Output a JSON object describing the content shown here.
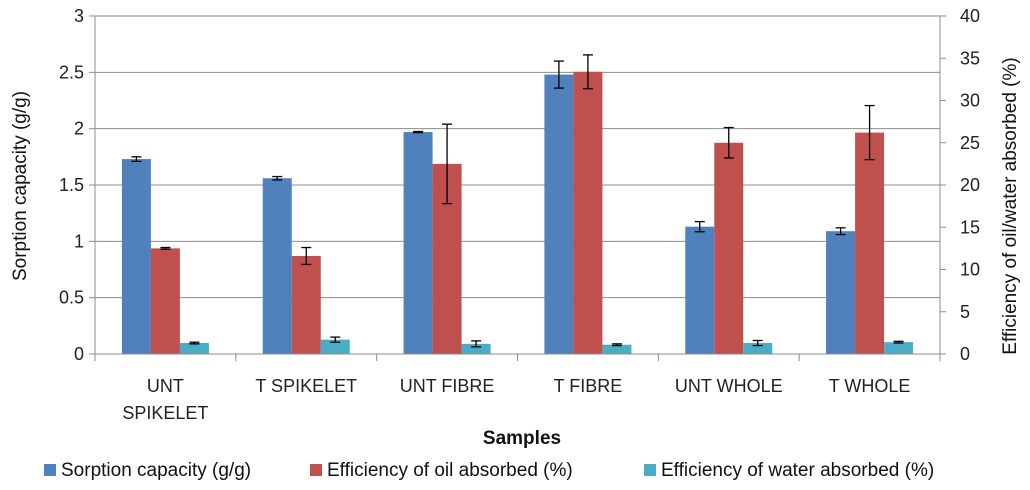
{
  "chart_data": {
    "type": "bar",
    "xlabel": "Samples",
    "ylabel": "Sorption capacity (g/g)",
    "y2label": "Efficiency of oil/water absorbed (%)",
    "ylim": [
      0,
      3
    ],
    "y2lim": [
      0,
      40
    ],
    "yticks": [
      "0",
      "0.5",
      "1",
      "1.5",
      "2",
      "2.5",
      "3"
    ],
    "y2ticks": [
      "0",
      "5",
      "10",
      "15",
      "20",
      "25",
      "30",
      "35",
      "40"
    ],
    "categories": [
      [
        "UNT",
        "SPIKELET"
      ],
      [
        "T SPIKELET"
      ],
      [
        "UNT FIBRE"
      ],
      [
        "T FIBRE"
      ],
      [
        "UNT WHOLE"
      ],
      [
        "T WHOLE"
      ]
    ],
    "series": [
      {
        "name": "Sorption capacity (g/g)",
        "axis": "left",
        "color": "#4f81bd",
        "values": [
          1.73,
          1.56,
          1.97,
          2.48,
          1.13,
          1.09
        ],
        "errors": [
          0.02,
          0.015,
          0.005,
          0.12,
          0.045,
          0.03
        ]
      },
      {
        "name": "Efficiency of oil absorbed (%)",
        "axis": "right",
        "color": "#c0504d",
        "values": [
          12.5,
          11.6,
          22.5,
          33.4,
          25.0,
          26.2
        ],
        "errors": [
          0.1,
          1.0,
          4.7,
          2.0,
          1.8,
          3.2
        ]
      },
      {
        "name": "Efficiency of water absorbed (%)",
        "axis": "right",
        "color": "#4bacc6",
        "values": [
          1.3,
          1.7,
          1.2,
          1.1,
          1.3,
          1.4
        ],
        "errors": [
          0.1,
          0.3,
          0.35,
          0.1,
          0.3,
          0.1
        ]
      }
    ]
  }
}
